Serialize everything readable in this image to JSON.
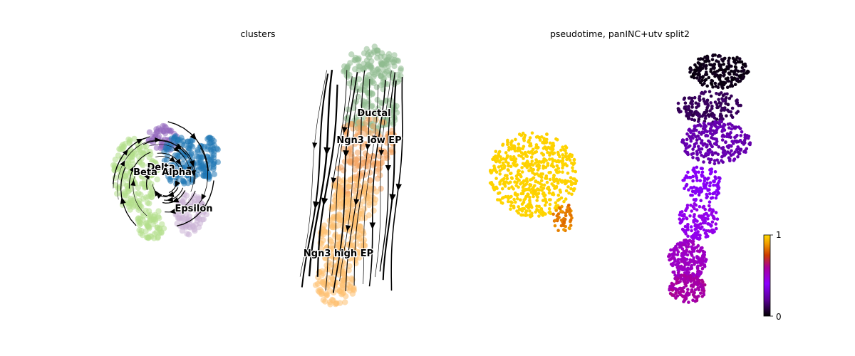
{
  "figure": {
    "panel_left_title": "clusters",
    "panel_right_title": "pseudotime, panINC+utv split2"
  },
  "chart_data": [
    {
      "type": "scatter",
      "title": "clusters",
      "xlabel": "",
      "ylabel": "",
      "axes_visible": false,
      "grid": false,
      "overlay": "velocity streamlines with arrowheads",
      "clusters": [
        {
          "name": "Ductal",
          "color": "#8fbc8f"
        },
        {
          "name": "Ngn3 low EP",
          "color": "#f4a460"
        },
        {
          "name": "Ngn3 high EP",
          "color": "#fdbf6f"
        },
        {
          "name": "Delta",
          "color": "#9467bd"
        },
        {
          "name": "Beta",
          "color": "#b2df8a"
        },
        {
          "name": "Alpha",
          "color": "#1f77b4"
        },
        {
          "name": "Epsilon",
          "color": "#cab2d6"
        }
      ]
    },
    {
      "type": "scatter",
      "title": "pseudotime, panINC+utv split2",
      "xlabel": "",
      "ylabel": "",
      "axes_visible": false,
      "grid": false,
      "colormap": "gnuplot",
      "colorbar": {
        "min": 0,
        "max": 1,
        "ticks": [
          "0",
          "1"
        ],
        "position": "right"
      }
    }
  ]
}
